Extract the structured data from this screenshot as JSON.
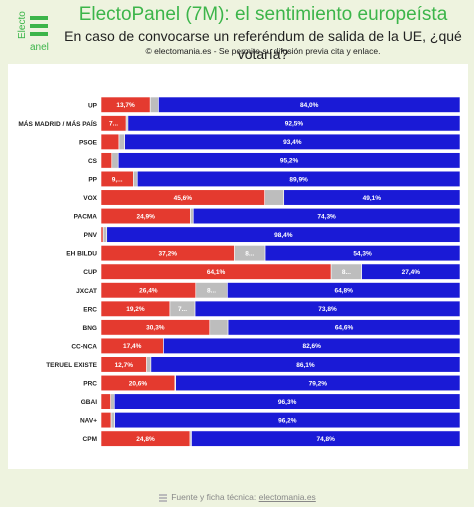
{
  "header": {
    "logo_text_top": "Electo",
    "logo_text_bottom": "anel",
    "title": "ElectoPanel (7M): el sentimiento europeísta",
    "subtitle": "En caso de convocarse un referéndum de salida de la UE, ¿qué votaría?",
    "credit": "© electomania.es - Se permite su difusión previa cita y enlace."
  },
  "footer": {
    "text": "Fuente y ficha técnica: ",
    "link": "electomania.es"
  },
  "colors": {
    "leave": "#e43a2f",
    "undecided": "#bdbdbd",
    "remain": "#1a1ad6",
    "brand_green": "#3cb54a",
    "background": "#eef3df"
  },
  "chart_data": {
    "type": "bar",
    "orientation": "horizontal",
    "stacked": true,
    "categories": [
      "UP",
      "MÁS MADRID / MÁS PAÍS",
      "PSOE",
      "CS",
      "PP",
      "VOX",
      "PACMA",
      "PNV",
      "EH BILDU",
      "CUP",
      "JXCAT",
      "ERC",
      "BNG",
      "CC-NCA",
      "TERUEL EXISTE",
      "PRC",
      "GBAI",
      "NAV+",
      "CPM"
    ],
    "series": [
      {
        "values": [
          13.7,
          7.0,
          5.0,
          3.0,
          9.0,
          45.6,
          24.9,
          0.6,
          37.2,
          64.1,
          26.4,
          19.2,
          30.3,
          17.4,
          12.7,
          20.6,
          2.7,
          2.8,
          24.8
        ],
        "labels": [
          "13,7%",
          "7...",
          "",
          "",
          "9,...",
          "45,6%",
          "24,9%",
          "",
          "37,2%",
          "64,1%",
          "26,4%",
          "19,2%",
          "30,3%",
          "17,4%",
          "12,7%",
          "20,6%",
          "",
          "",
          "24,8%"
        ]
      },
      {
        "values": [
          2.3,
          0.5,
          1.6,
          1.8,
          1.1,
          5.3,
          0.8,
          1.0,
          8.5,
          8.5,
          8.8,
          7.0,
          5.1,
          0.0,
          1.2,
          0.2,
          1.0,
          1.0,
          0.4
        ],
        "labels": [
          "",
          "",
          "",
          "",
          "",
          "",
          "",
          "",
          "8...",
          "8...",
          "8...",
          "7...",
          "",
          "",
          "",
          "",
          "",
          "",
          ""
        ]
      },
      {
        "values": [
          84.0,
          92.5,
          93.4,
          95.2,
          89.9,
          49.1,
          74.3,
          98.4,
          54.3,
          27.4,
          64.8,
          73.8,
          64.6,
          82.6,
          86.1,
          79.2,
          96.3,
          96.2,
          74.8
        ],
        "labels": [
          "84,0%",
          "92,5%",
          "93,4%",
          "95,2%",
          "89,9%",
          "49,1%",
          "74,3%",
          "98,4%",
          "54,3%",
          "27,4%",
          "64,8%",
          "73,8%",
          "64,6%",
          "82,6%",
          "86,1%",
          "79,2%",
          "96,3%",
          "96,2%",
          "74,8%"
        ]
      }
    ],
    "xlim": [
      0,
      100
    ],
    "grid": false,
    "legend": "none"
  }
}
